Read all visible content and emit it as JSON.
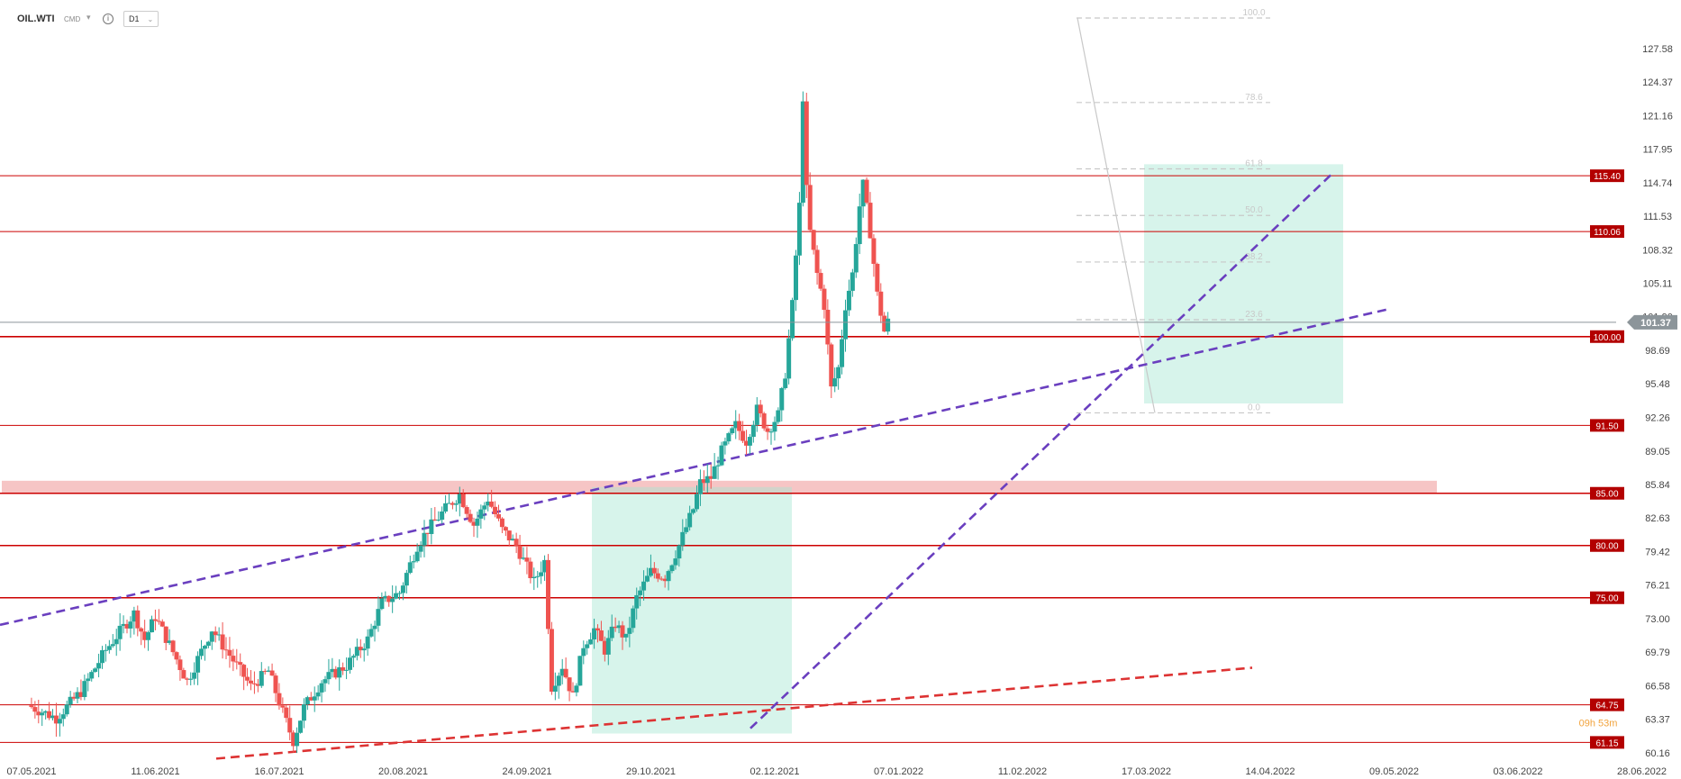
{
  "toolbar": {
    "symbol": "OIL.WTI",
    "category": "CMD",
    "timeframe": "D1",
    "info_icon": "info-icon",
    "caret_icon": "chevron-down-icon"
  },
  "colors": {
    "bull": "#26a69a",
    "bear": "#ef5350",
    "level": "#cc0000",
    "trend": "#6a3fbf",
    "current": "#8c959a",
    "zone": "#a6e6d2",
    "band": "#f4b7b7",
    "countdown": "#f2a33c"
  },
  "chart_data": {
    "type": "candlestick",
    "instrument": "OIL.WTI",
    "timeframe": "D1",
    "ylim": [
      59.2,
      130.5
    ],
    "y_ticks": [
      60.16,
      63.37,
      66.58,
      69.79,
      73.0,
      76.21,
      79.42,
      82.63,
      85.84,
      89.05,
      92.26,
      95.48,
      98.69,
      101.9,
      105.11,
      108.32,
      111.53,
      114.74,
      117.95,
      121.16,
      124.37,
      127.58
    ],
    "x_ticks": [
      "07.05.2021",
      "11.06.2021",
      "16.07.2021",
      "20.08.2021",
      "24.09.2021",
      "29.10.2021",
      "02.12.2021",
      "07.01.2022",
      "11.02.2022",
      "17.03.2022",
      "14.04.2022",
      "09.05.2022",
      "03.06.2022",
      "28.06.2022"
    ],
    "current_price": 101.37,
    "countdown": "09h 53m",
    "levels": [
      115.4,
      110.06,
      100.0,
      91.5,
      85.0,
      80.0,
      75.0,
      64.75,
      61.15
    ],
    "resistance_band": [
      85.0,
      86.2
    ],
    "fibonacci": {
      "high": 130.5,
      "low": 92.7,
      "ratios": [
        "100.0",
        "78.6",
        "61.8",
        "50.0",
        "38.2",
        "23.6",
        "0.0"
      ]
    },
    "close_path": [
      [
        0,
        64.7
      ],
      [
        8,
        63.5
      ],
      [
        15,
        66.0
      ],
      [
        22,
        70.0
      ],
      [
        30,
        73.5
      ],
      [
        33,
        71.0
      ],
      [
        36,
        73.2
      ],
      [
        40,
        70.5
      ],
      [
        45,
        67.0
      ],
      [
        52,
        72.0
      ],
      [
        58,
        69.0
      ],
      [
        63,
        66.5
      ],
      [
        68,
        68.0
      ],
      [
        72,
        64.0
      ],
      [
        75,
        61.3
      ],
      [
        78,
        64.5
      ],
      [
        83,
        67.0
      ],
      [
        90,
        68.5
      ],
      [
        96,
        71.0
      ],
      [
        100,
        74.5
      ],
      [
        105,
        75.5
      ],
      [
        110,
        80.0
      ],
      [
        113,
        81.5
      ],
      [
        118,
        83.5
      ],
      [
        122,
        84.9
      ],
      [
        126,
        82.0
      ],
      [
        130,
        84.5
      ],
      [
        134,
        81.5
      ],
      [
        138,
        80.0
      ],
      [
        143,
        76.5
      ],
      [
        146,
        78.5
      ],
      [
        148,
        66.5
      ],
      [
        151,
        68.5
      ],
      [
        154,
        65.5
      ],
      [
        157,
        70.5
      ],
      [
        160,
        72.0
      ],
      [
        163,
        70.0
      ],
      [
        166,
        72.5
      ],
      [
        169,
        71.0
      ],
      [
        172,
        75.0
      ],
      [
        176,
        77.5
      ],
      [
        180,
        77.0
      ],
      [
        184,
        80.0
      ],
      [
        188,
        83.5
      ],
      [
        190,
        86.0
      ],
      [
        193,
        86.5
      ],
      [
        196,
        89.0
      ],
      [
        200,
        91.5
      ],
      [
        203,
        90.0
      ],
      [
        206,
        93.0
      ],
      [
        209,
        91.0
      ],
      [
        212,
        92.5
      ],
      [
        214,
        96.5
      ],
      [
        216,
        103.0
      ],
      [
        218,
        112.5
      ],
      [
        219,
        123.0
      ],
      [
        220,
        114.0
      ],
      [
        221,
        110.0
      ],
      [
        223,
        106.0
      ],
      [
        225,
        103.0
      ],
      [
        227,
        95.0
      ],
      [
        229,
        97.0
      ],
      [
        231,
        103.0
      ],
      [
        233,
        106.0
      ],
      [
        235,
        112.5
      ],
      [
        236,
        114.5
      ],
      [
        238,
        110.0
      ],
      [
        240,
        104.0
      ],
      [
        242,
        100.5
      ],
      [
        243,
        101.4
      ]
    ]
  }
}
